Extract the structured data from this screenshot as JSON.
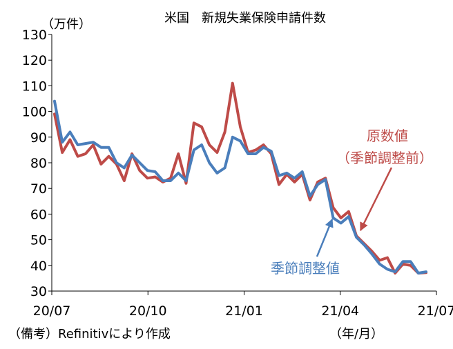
{
  "chart_data": {
    "type": "line",
    "title": "米国　新規失業保険申請件数",
    "ylabel": "（万件）",
    "xlabel": "（年/月）",
    "source_note": "（備考）Refinitivにより作成",
    "ylim": [
      30,
      130
    ],
    "yticks": [
      30,
      40,
      50,
      60,
      70,
      80,
      90,
      100,
      110,
      120,
      130
    ],
    "xtick_labels": [
      "20/07",
      "20/10",
      "21/01",
      "21/04",
      "21/07"
    ],
    "xtick_index": [
      0,
      13,
      26,
      39,
      52
    ],
    "grid": false,
    "series": [
      {
        "name": "季節調整値",
        "color": "#4a7ebb",
        "label_lines": [
          "季節調整値"
        ],
        "values": [
          104,
          88,
          92,
          87,
          87.5,
          88,
          86,
          86,
          80,
          78,
          83,
          80,
          77,
          76.5,
          73,
          73,
          76,
          73,
          85,
          87,
          80,
          76,
          78,
          90,
          88.5,
          83.5,
          83.5,
          86,
          84.5,
          75,
          76,
          74,
          76.5,
          67,
          71.5,
          73.5,
          58.5,
          56.5,
          59,
          51,
          48,
          44.5,
          40.5,
          38.5,
          37.5,
          41.5,
          41.5,
          37,
          37.5
        ]
      },
      {
        "name": "原数値（季節調整前）",
        "color": "#be4b48",
        "label_lines": [
          "原数値",
          "（季節調整前）"
        ],
        "values": [
          99,
          84,
          89,
          82.5,
          83.5,
          87,
          79.5,
          82.5,
          79.5,
          73,
          83.5,
          77,
          74,
          74.5,
          72.5,
          74,
          83.5,
          72,
          95.5,
          94,
          87,
          84,
          92,
          111,
          94,
          84,
          85,
          87,
          83.5,
          71.5,
          75.5,
          72.5,
          75.5,
          65.5,
          72.5,
          74,
          62.5,
          58.5,
          61,
          51.5,
          48.5,
          45.5,
          42,
          43,
          37,
          40.5,
          40,
          37,
          37.2
        ]
      }
    ]
  }
}
